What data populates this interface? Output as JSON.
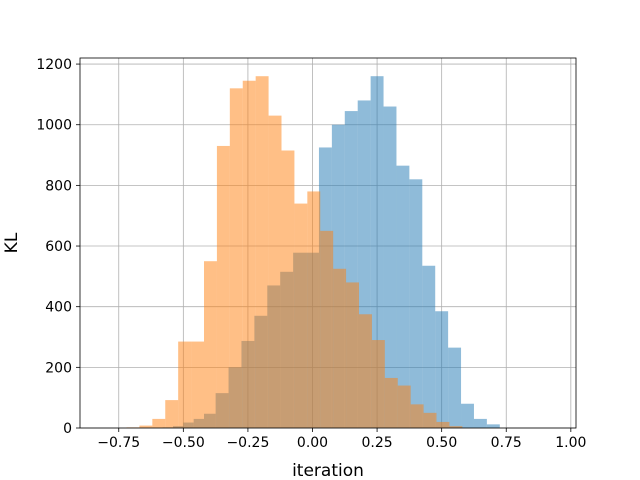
{
  "chart_data": {
    "type": "bar",
    "subtype": "overlaid-histogram",
    "title": "",
    "xlabel": "iteration",
    "ylabel": "KL",
    "xlim": [
      -0.9,
      1.02
    ],
    "ylim": [
      0,
      1220
    ],
    "grid": true,
    "legend": "none",
    "x_ticks": [
      -0.75,
      -0.5,
      -0.25,
      0.0,
      0.25,
      0.5,
      0.75,
      1.0
    ],
    "x_tick_labels": [
      "−0.75",
      "−0.50",
      "−0.25",
      "0.00",
      "0.25",
      "0.50",
      "0.75",
      "1.00"
    ],
    "y_ticks": [
      0,
      200,
      400,
      600,
      800,
      1000,
      1200
    ],
    "y_tick_labels": [
      "0",
      "200",
      "400",
      "600",
      "800",
      "1000",
      "1200"
    ],
    "series": [
      {
        "color": "#1f77b4",
        "opacity": 0.5,
        "bins": [
          {
            "x0": -0.58,
            "x1": -0.54,
            "value": 2
          },
          {
            "x0": -0.54,
            "x1": -0.5,
            "value": 6
          },
          {
            "x0": -0.5,
            "x1": -0.46,
            "value": 18
          },
          {
            "x0": -0.46,
            "x1": -0.42,
            "value": 30
          },
          {
            "x0": -0.42,
            "x1": -0.375,
            "value": 47
          },
          {
            "x0": -0.375,
            "x1": -0.325,
            "value": 115
          },
          {
            "x0": -0.325,
            "x1": -0.275,
            "value": 200
          },
          {
            "x0": -0.275,
            "x1": -0.225,
            "value": 287
          },
          {
            "x0": -0.225,
            "x1": -0.175,
            "value": 370
          },
          {
            "x0": -0.175,
            "x1": -0.125,
            "value": 470
          },
          {
            "x0": -0.125,
            "x1": -0.075,
            "value": 515
          },
          {
            "x0": -0.075,
            "x1": -0.025,
            "value": 578
          },
          {
            "x0": -0.025,
            "x1": 0.025,
            "value": 578
          },
          {
            "x0": 0.025,
            "x1": 0.075,
            "value": 925
          },
          {
            "x0": 0.075,
            "x1": 0.125,
            "value": 1000
          },
          {
            "x0": 0.125,
            "x1": 0.175,
            "value": 1045
          },
          {
            "x0": 0.175,
            "x1": 0.225,
            "value": 1080
          },
          {
            "x0": 0.225,
            "x1": 0.275,
            "value": 1160
          },
          {
            "x0": 0.275,
            "x1": 0.325,
            "value": 1060
          },
          {
            "x0": 0.325,
            "x1": 0.375,
            "value": 865
          },
          {
            "x0": 0.375,
            "x1": 0.425,
            "value": 820
          },
          {
            "x0": 0.425,
            "x1": 0.475,
            "value": 535
          },
          {
            "x0": 0.475,
            "x1": 0.525,
            "value": 385
          },
          {
            "x0": 0.525,
            "x1": 0.575,
            "value": 265
          },
          {
            "x0": 0.575,
            "x1": 0.625,
            "value": 80
          },
          {
            "x0": 0.625,
            "x1": 0.675,
            "value": 30
          },
          {
            "x0": 0.675,
            "x1": 0.725,
            "value": 12
          }
        ]
      },
      {
        "color": "#ff7f0e",
        "opacity": 0.5,
        "bins": [
          {
            "x0": -0.72,
            "x1": -0.67,
            "value": 2
          },
          {
            "x0": -0.67,
            "x1": -0.62,
            "value": 8
          },
          {
            "x0": -0.62,
            "x1": -0.57,
            "value": 30
          },
          {
            "x0": -0.57,
            "x1": -0.52,
            "value": 92
          },
          {
            "x0": -0.52,
            "x1": -0.47,
            "value": 285
          },
          {
            "x0": -0.47,
            "x1": -0.42,
            "value": 285
          },
          {
            "x0": -0.42,
            "x1": -0.37,
            "value": 550
          },
          {
            "x0": -0.37,
            "x1": -0.32,
            "value": 930
          },
          {
            "x0": -0.32,
            "x1": -0.27,
            "value": 1120
          },
          {
            "x0": -0.27,
            "x1": -0.22,
            "value": 1145
          },
          {
            "x0": -0.22,
            "x1": -0.17,
            "value": 1160
          },
          {
            "x0": -0.17,
            "x1": -0.12,
            "value": 1030
          },
          {
            "x0": -0.12,
            "x1": -0.07,
            "value": 915
          },
          {
            "x0": -0.07,
            "x1": -0.02,
            "value": 740
          },
          {
            "x0": -0.02,
            "x1": 0.03,
            "value": 780
          },
          {
            "x0": 0.03,
            "x1": 0.08,
            "value": 650
          },
          {
            "x0": 0.08,
            "x1": 0.13,
            "value": 525
          },
          {
            "x0": 0.13,
            "x1": 0.18,
            "value": 480
          },
          {
            "x0": 0.18,
            "x1": 0.23,
            "value": 375
          },
          {
            "x0": 0.23,
            "x1": 0.28,
            "value": 290
          },
          {
            "x0": 0.28,
            "x1": 0.33,
            "value": 165
          },
          {
            "x0": 0.33,
            "x1": 0.38,
            "value": 140
          },
          {
            "x0": 0.38,
            "x1": 0.43,
            "value": 78
          },
          {
            "x0": 0.43,
            "x1": 0.48,
            "value": 50
          },
          {
            "x0": 0.48,
            "x1": 0.53,
            "value": 20
          },
          {
            "x0": 0.53,
            "x1": 0.58,
            "value": 6
          }
        ]
      }
    ]
  }
}
